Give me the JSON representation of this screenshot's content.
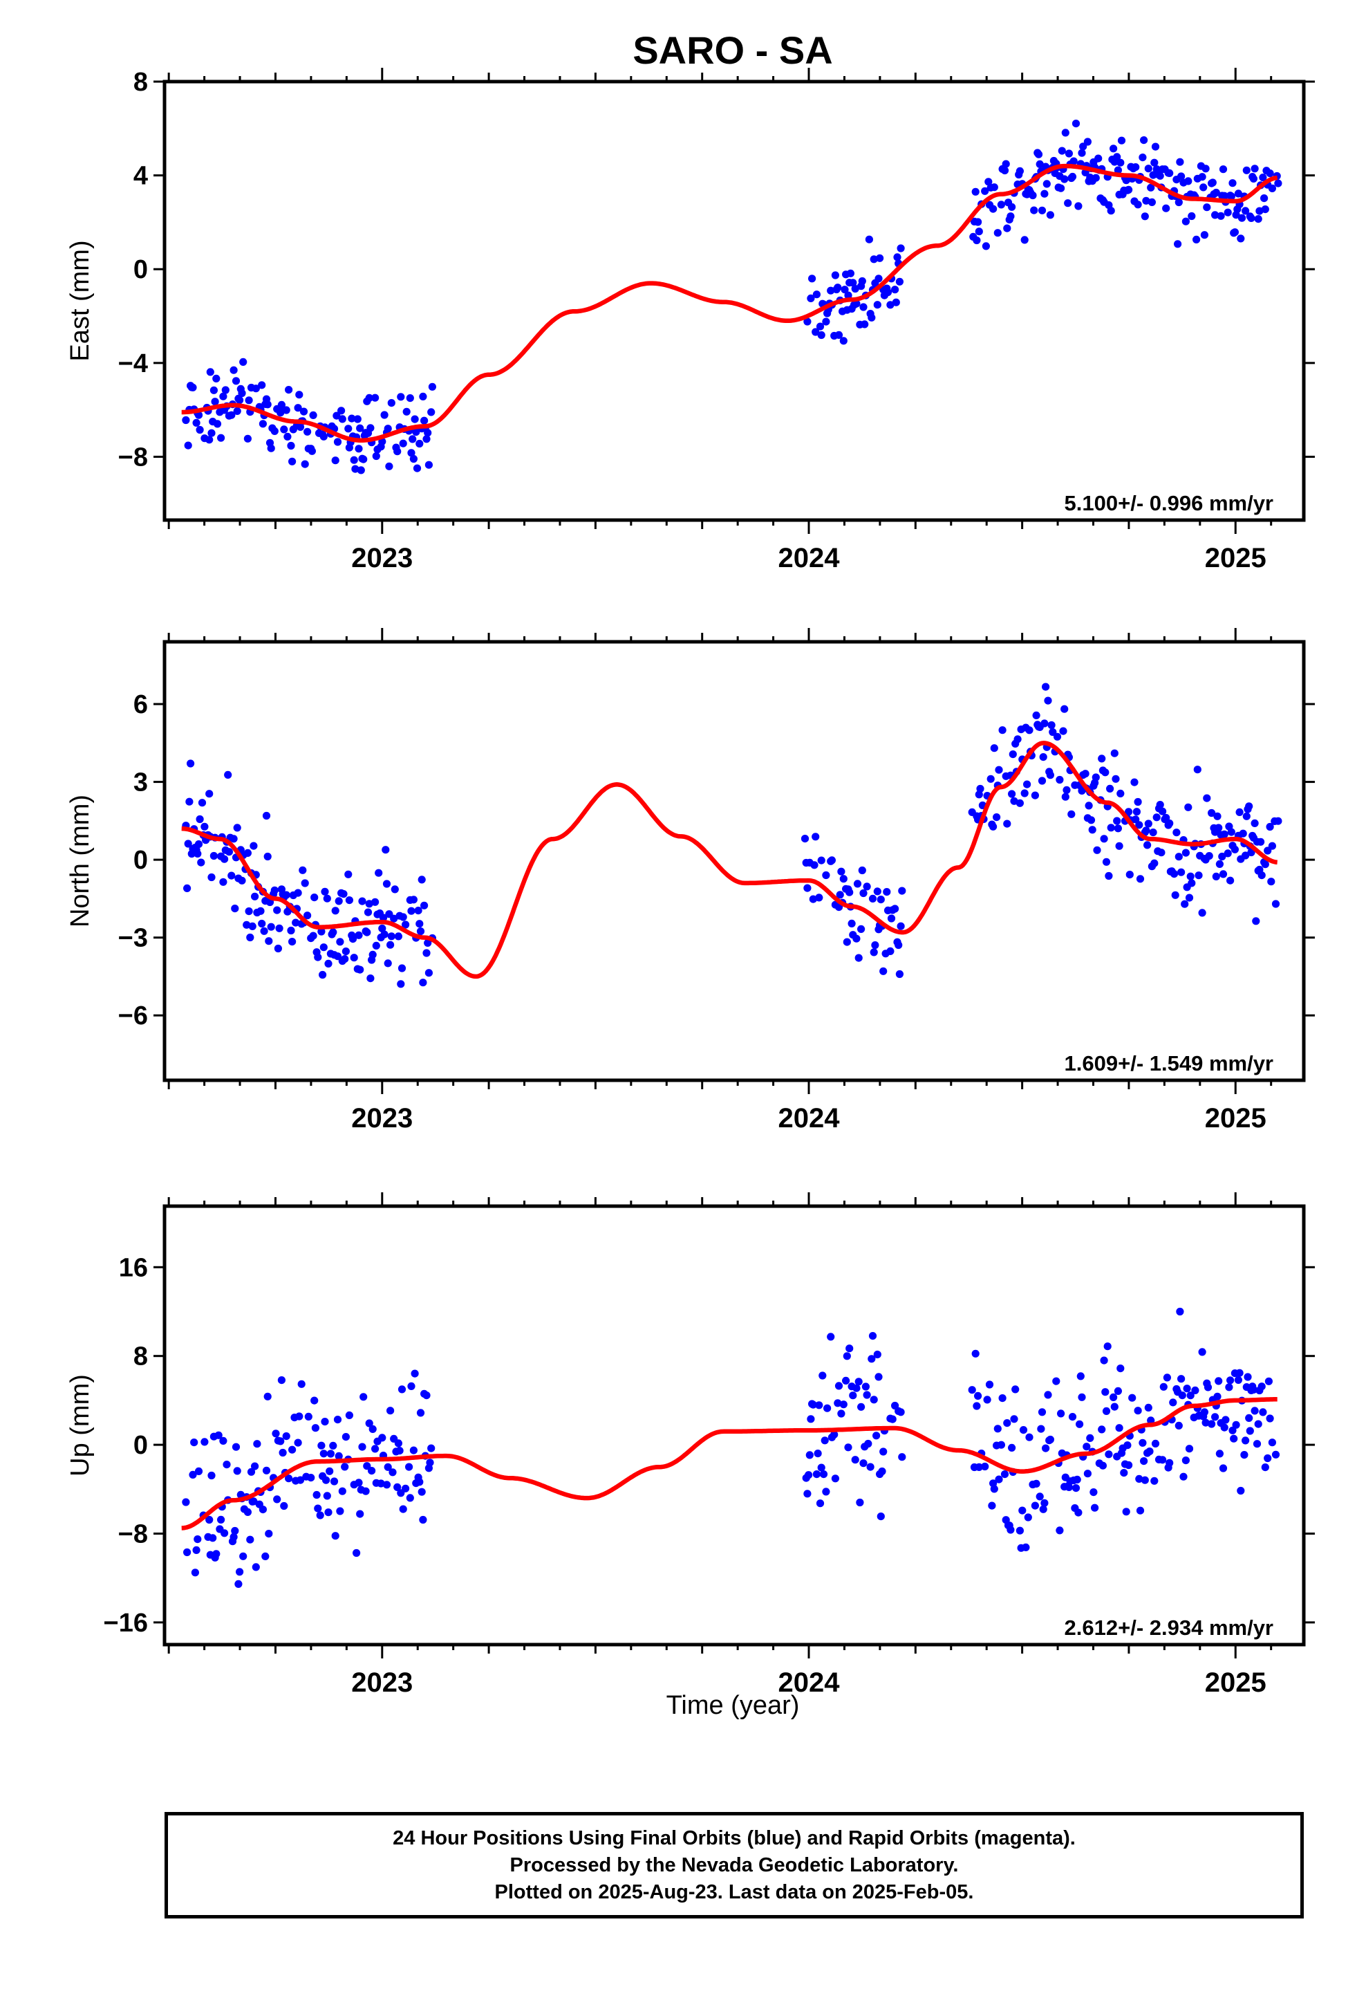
{
  "figure": {
    "title": "SARO - SA",
    "xlabel": "Time (year)",
    "footer": [
      "24 Hour Positions Using Final Orbits (blue) and Rapid Orbits (magenta).",
      "Processed by the Nevada Geodetic Laboratory.",
      "Plotted on 2025-Aug-23. Last data on 2025-Feb-05."
    ],
    "colors": {
      "points": "#0000ff",
      "fit": "#ff0000",
      "axes": "#000000"
    }
  },
  "chart_data": [
    {
      "type": "scatter",
      "ylabel": "East (mm)",
      "rate": "5.100+/- 0.996 mm/yr",
      "xlim": [
        2022.49,
        2025.16
      ],
      "ylim": [
        -10.7,
        8.0
      ],
      "yticks": [
        8,
        4,
        0,
        -4,
        -8
      ],
      "ytick_labels": [
        "8",
        "4",
        "0",
        "−4",
        "−8"
      ],
      "xticks": [
        2023,
        2024,
        2025
      ],
      "xtick_labels": [
        "2023",
        "2024",
        "2025"
      ],
      "gaps": [
        [
          2023.12,
          2023.99
        ],
        [
          2024.22,
          2024.38
        ]
      ],
      "fit": {
        "x": [
          2022.53,
          2022.65,
          2022.8,
          2022.95,
          2023.1,
          2023.25,
          2023.45,
          2023.63,
          2023.8,
          2023.95,
          2024.1,
          2024.3,
          2024.45,
          2024.6,
          2024.75,
          2024.9,
          2025.0,
          2025.1
        ],
        "y": [
          -6.1,
          -5.8,
          -6.5,
          -7.3,
          -6.7,
          -4.5,
          -1.8,
          -0.6,
          -1.4,
          -2.2,
          -1.3,
          1.0,
          3.2,
          4.4,
          4.0,
          3.0,
          2.9,
          3.9
        ]
      },
      "spread": 1.2
    },
    {
      "type": "scatter",
      "ylabel": "North (mm)",
      "rate": "1.609+/- 1.549 mm/yr",
      "xlim": [
        2022.49,
        2025.16
      ],
      "ylim": [
        -8.5,
        8.4
      ],
      "yticks": [
        6,
        3,
        0,
        -3,
        -6
      ],
      "ytick_labels": [
        "6",
        "3",
        "0",
        "−3",
        "−6"
      ],
      "xticks": [
        2023,
        2024,
        2025
      ],
      "xtick_labels": [
        "2023",
        "2024",
        "2025"
      ],
      "gaps": [
        [
          2023.12,
          2023.99
        ],
        [
          2024.22,
          2024.38
        ]
      ],
      "fit": {
        "x": [
          2022.53,
          2022.62,
          2022.75,
          2022.85,
          2023.0,
          2023.1,
          2023.22,
          2023.4,
          2023.55,
          2023.7,
          2023.85,
          2024.0,
          2024.1,
          2024.22,
          2024.35,
          2024.45,
          2024.55,
          2024.7,
          2024.8,
          2024.9,
          2025.0,
          2025.1
        ],
        "y": [
          1.2,
          0.8,
          -1.5,
          -2.6,
          -2.4,
          -3.0,
          -4.5,
          0.8,
          2.9,
          0.9,
          -0.9,
          -0.8,
          -1.8,
          -2.8,
          -0.3,
          2.8,
          4.5,
          2.2,
          0.8,
          0.6,
          0.8,
          -0.1
        ]
      },
      "spread": 1.5
    },
    {
      "type": "scatter",
      "ylabel": "Up (mm)",
      "rate": "2.612+/- 2.934 mm/yr",
      "xlim": [
        2022.49,
        2025.16
      ],
      "ylim": [
        -18.0,
        21.5
      ],
      "yticks": [
        16,
        8,
        0,
        -8,
        -16
      ],
      "ytick_labels": [
        "16",
        "8",
        "0",
        "−8",
        "−16"
      ],
      "xticks": [
        2023,
        2024,
        2025
      ],
      "xtick_labels": [
        "2023",
        "2024",
        "2025"
      ],
      "gaps": [
        [
          2023.12,
          2023.99
        ],
        [
          2024.22,
          2024.38
        ]
      ],
      "fit": {
        "x": [
          2022.53,
          2022.65,
          2022.85,
          2023.0,
          2023.15,
          2023.3,
          2023.48,
          2023.65,
          2023.8,
          2024.0,
          2024.2,
          2024.35,
          2024.5,
          2024.65,
          2024.8,
          2024.9,
          2025.0,
          2025.1
        ],
        "y": [
          -7.5,
          -5.0,
          -1.5,
          -1.3,
          -1.0,
          -3.0,
          -4.8,
          -2.0,
          1.2,
          1.3,
          1.5,
          -0.5,
          -2.4,
          -0.8,
          1.8,
          3.5,
          4.0,
          4.1
        ]
      },
      "spread": 5.0
    }
  ]
}
